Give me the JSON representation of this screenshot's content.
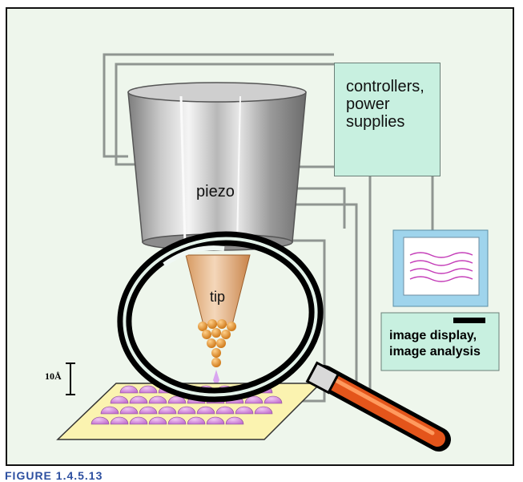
{
  "labels": {
    "controllers": "controllers,\npower\nsupplies",
    "piezo": "piezo",
    "tip": "tip",
    "display": "image display,\nimage analysis",
    "scale": "10Å"
  },
  "caption": "FIGURE 1.4.5.13"
}
